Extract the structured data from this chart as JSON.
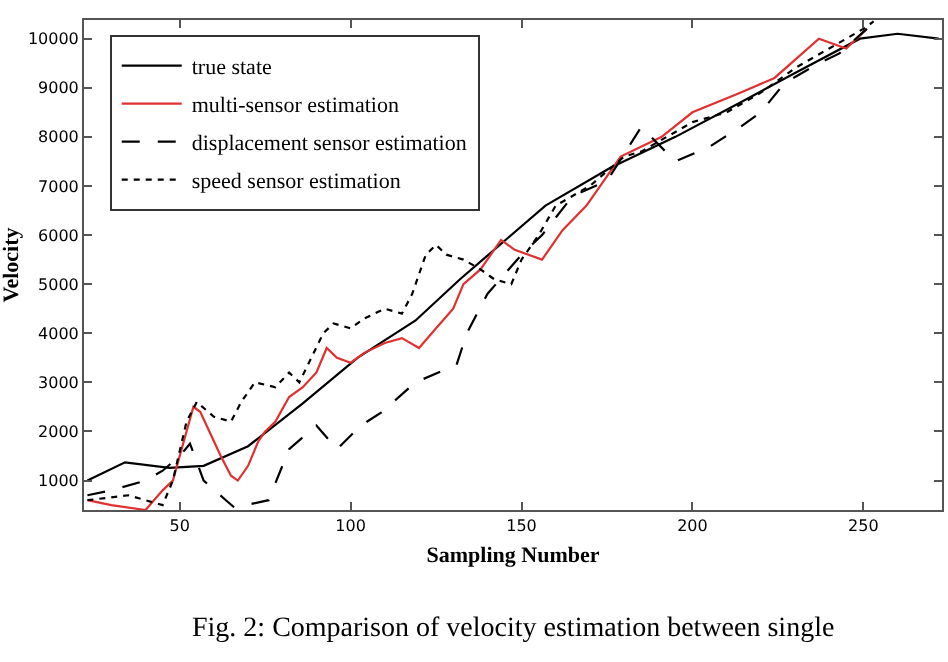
{
  "chart_data": {
    "type": "line",
    "xlabel": "Sampling Number",
    "ylabel": "Velocity",
    "xlim": [
      22,
      273
    ],
    "ylim": [
      400,
      10380
    ],
    "xticks": [
      50,
      100,
      150,
      200,
      250
    ],
    "yticks": [
      1000,
      2000,
      3000,
      4000,
      5000,
      6000,
      7000,
      8000,
      9000,
      10000
    ],
    "grid": false,
    "legend": "top left",
    "annotations": [
      "Fig. 2: Comparison of velocity estimation between single"
    ],
    "series": [
      {
        "name": "true state",
        "color": "#000000",
        "line_style": "solid",
        "x": [
          23,
          34,
          47,
          57,
          70,
          86,
          102,
          119,
          132,
          157,
          176,
          195,
          214,
          230,
          249,
          260,
          272
        ],
        "values": [
          1000,
          1370,
          1260,
          1300,
          1700,
          2570,
          3500,
          4260,
          5100,
          6600,
          7370,
          8000,
          8700,
          9300,
          10000,
          10100,
          10000
        ]
      },
      {
        "name": "multi-sensor estimation",
        "color": "#e03030",
        "line_style": "solid",
        "x": [
          23,
          30,
          40,
          45,
          48,
          52,
          54,
          56,
          60,
          62,
          65,
          67,
          70,
          73,
          75,
          78,
          82,
          86,
          90,
          93,
          96,
          100,
          104,
          110,
          115,
          120,
          125,
          130,
          133,
          138,
          144,
          148,
          156,
          162,
          169,
          179,
          191,
          200,
          214,
          224,
          237,
          245,
          251
        ],
        "values": [
          600,
          500,
          400,
          800,
          1000,
          2000,
          2500,
          2400,
          1800,
          1500,
          1100,
          1000,
          1300,
          1800,
          2000,
          2200,
          2700,
          2900,
          3200,
          3700,
          3500,
          3400,
          3600,
          3800,
          3900,
          3700,
          4100,
          4500,
          5000,
          5300,
          5900,
          5700,
          5500,
          6100,
          6600,
          7600,
          8000,
          8500,
          8900,
          9200,
          10000,
          9800,
          10200
        ]
      },
      {
        "name": "displacement sensor estimation",
        "color": "#000000",
        "line_style": "dashed",
        "x": [
          23,
          30,
          40,
          45,
          50,
          53,
          57,
          63,
          66,
          76,
          82,
          90,
          96,
          103,
          109,
          119,
          131,
          134,
          140,
          150,
          156,
          165,
          175,
          185,
          195,
          205,
          214,
          220,
          227,
          237,
          243,
          251
        ],
        "values": [
          700,
          800,
          1000,
          1200,
          1500,
          1750,
          1000,
          630,
          450,
          600,
          1640,
          2120,
          1640,
          2120,
          2390,
          3000,
          3360,
          4000,
          4800,
          5600,
          6000,
          6800,
          7100,
          8200,
          7500,
          7800,
          8200,
          8500,
          9100,
          9500,
          9700,
          10200
        ]
      },
      {
        "name": "speed sensor estimation",
        "color": "#000000",
        "line_style": "dotted",
        "x": [
          23,
          35,
          45,
          48,
          52,
          55,
          60,
          65,
          68,
          72,
          78,
          82,
          85,
          92,
          95,
          100,
          104,
          110,
          115,
          118,
          122,
          125,
          128,
          133,
          138,
          142,
          147,
          150,
          155,
          160,
          170,
          180,
          185,
          200,
          210,
          220,
          230,
          240,
          250,
          253
        ],
        "values": [
          600,
          700,
          500,
          1000,
          2200,
          2600,
          2300,
          2200,
          2600,
          3000,
          2900,
          3200,
          3000,
          4000,
          4200,
          4100,
          4300,
          4500,
          4400,
          4800,
          5600,
          5800,
          5600,
          5500,
          5300,
          5100,
          5000,
          5500,
          6000,
          6600,
          7000,
          7600,
          7700,
          8300,
          8500,
          8900,
          9400,
          9800,
          10200,
          10350
        ]
      }
    ]
  }
}
